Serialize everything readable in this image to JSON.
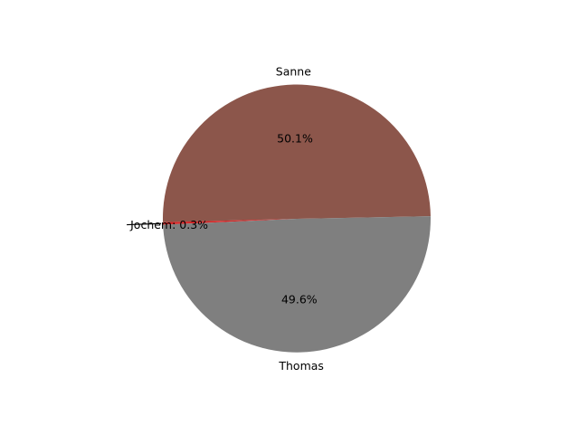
{
  "chart_data": {
    "type": "pie",
    "slices": [
      {
        "label": "Sanne",
        "value": 50.1,
        "pct_label": "50.1%",
        "color": "#8c564b"
      },
      {
        "label": "Jochem",
        "value": 0.3,
        "callout_label": "Jochem: 0.3%",
        "color": "#d62728"
      },
      {
        "label": "Thomas",
        "value": 49.6,
        "pct_label": "49.6%",
        "color": "#7f7f7f"
      }
    ],
    "legend": "none"
  }
}
